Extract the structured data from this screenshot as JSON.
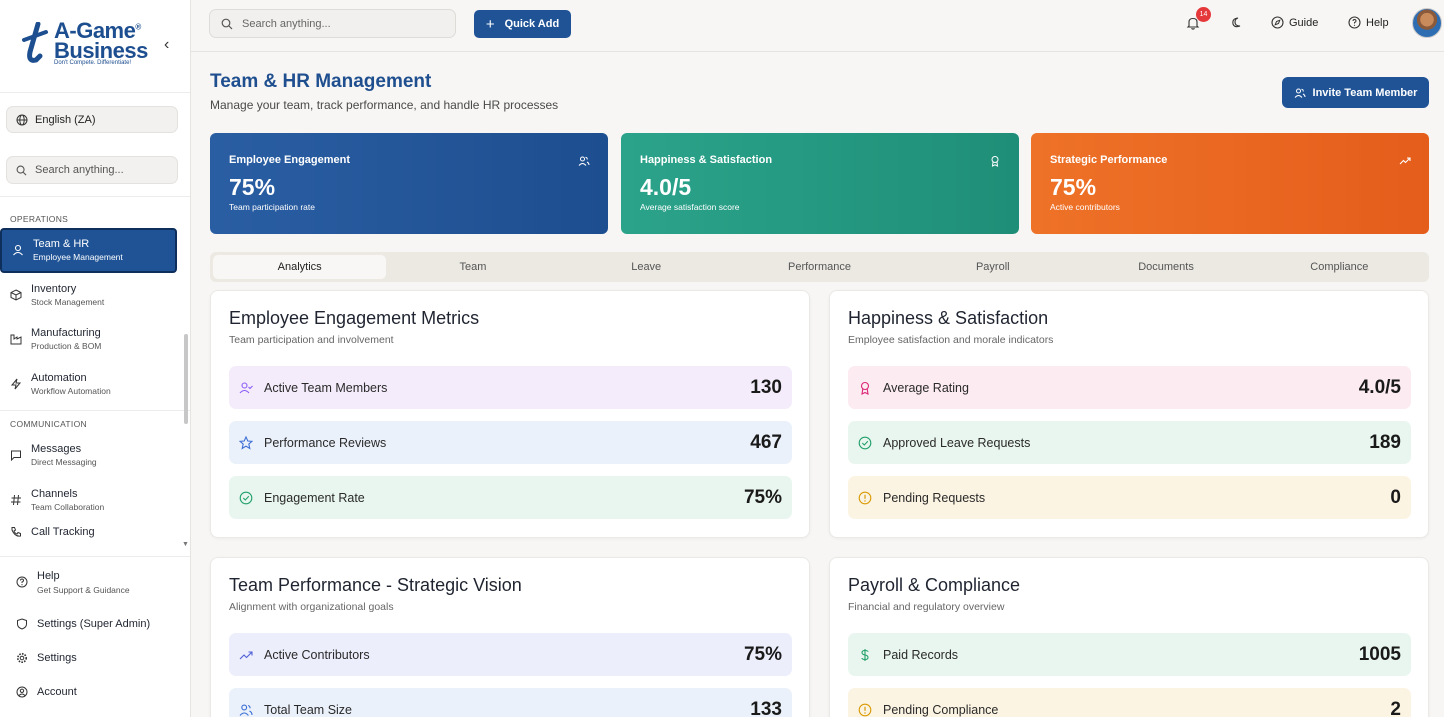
{
  "brand": {
    "name_line1": "A-Game",
    "name_line2": "Business",
    "registered": "®",
    "tagline": "Don't Compete. Differentiate!"
  },
  "sidebar": {
    "collapse_icon": "chevron-left-icon",
    "language": "English (ZA)",
    "search_placeholder": "Search anything...",
    "sections": [
      {
        "label": "OPERATIONS",
        "items": [
          {
            "label": "Team & HR",
            "sub": "Employee Management",
            "icon": "user-icon",
            "active": true
          },
          {
            "label": "Inventory",
            "sub": "Stock Management",
            "icon": "box-icon"
          },
          {
            "label": "Manufacturing",
            "sub": "Production & BOM",
            "icon": "factory-icon"
          },
          {
            "label": "Automation",
            "sub": "Workflow Automation",
            "icon": "zap-icon"
          }
        ]
      },
      {
        "label": "COMMUNICATION",
        "items": [
          {
            "label": "Messages",
            "sub": "Direct Messaging",
            "icon": "message-icon"
          },
          {
            "label": "Channels",
            "sub": "Team Collaboration",
            "icon": "hash-icon"
          },
          {
            "label": "Call Tracking",
            "sub": "",
            "icon": "phone-icon"
          }
        ]
      }
    ],
    "bottom": [
      {
        "label": "Help",
        "sub": "Get Support & Guidance",
        "icon": "help-circle-icon"
      },
      {
        "label": "Settings (Super Admin)",
        "sub": "",
        "icon": "shield-icon"
      },
      {
        "label": "Settings",
        "sub": "",
        "icon": "gear-icon"
      },
      {
        "label": "Account",
        "sub": "",
        "icon": "user-circle-icon"
      }
    ]
  },
  "topbar": {
    "search_placeholder": "Search anything...",
    "quick_add": "Quick Add",
    "notifications": "14",
    "guide": "Guide",
    "help": "Help"
  },
  "page": {
    "title": "Team & HR Management",
    "subtitle": "Manage your team, track performance, and handle HR processes",
    "invite": "Invite Team Member"
  },
  "kpis": [
    {
      "title": "Employee Engagement",
      "value": "75%",
      "sub": "Team participation rate",
      "icon": "users-icon"
    },
    {
      "title": "Happiness & Satisfaction",
      "value": "4.0/5",
      "sub": "Average satisfaction score",
      "icon": "award-icon"
    },
    {
      "title": "Strategic Performance",
      "value": "75%",
      "sub": "Active contributors",
      "icon": "trending-up-icon"
    }
  ],
  "tabs": [
    "Analytics",
    "Team",
    "Leave",
    "Performance",
    "Payroll",
    "Documents",
    "Compliance"
  ],
  "active_tab": "Analytics",
  "cards": {
    "engagement": {
      "title": "Employee Engagement Metrics",
      "subtitle": "Team participation and involvement",
      "metrics": [
        {
          "label": "Active Team Members",
          "value": "130",
          "icon": "user-check-icon"
        },
        {
          "label": "Performance Reviews",
          "value": "467",
          "icon": "star-icon"
        },
        {
          "label": "Engagement Rate",
          "value": "75%",
          "icon": "check-circle-icon"
        }
      ]
    },
    "happiness": {
      "title": "Happiness & Satisfaction",
      "subtitle": "Employee satisfaction and morale indicators",
      "metrics": [
        {
          "label": "Average Rating",
          "value": "4.0/5",
          "icon": "award-icon"
        },
        {
          "label": "Approved Leave Requests",
          "value": "189",
          "icon": "check-circle-icon"
        },
        {
          "label": "Pending Requests",
          "value": "0",
          "icon": "alert-circle-icon"
        }
      ]
    },
    "performance": {
      "title": "Team Performance - Strategic Vision",
      "subtitle": "Alignment with organizational goals",
      "metrics": [
        {
          "label": "Active Contributors",
          "value": "75%",
          "icon": "trending-up-icon"
        },
        {
          "label": "Total Team Size",
          "value": "133",
          "icon": "users-icon"
        }
      ]
    },
    "payroll": {
      "title": "Payroll & Compliance",
      "subtitle": "Financial and regulatory overview",
      "metrics": [
        {
          "label": "Paid Records",
          "value": "1005",
          "icon": "dollar-icon"
        },
        {
          "label": "Pending Compliance",
          "value": "2",
          "icon": "alert-circle-icon"
        }
      ]
    }
  },
  "colors": {
    "primary": "#1f5396",
    "engagement": "#1d4e8f",
    "happiness": "#1f8e78",
    "strategic": "#e55d1b"
  }
}
